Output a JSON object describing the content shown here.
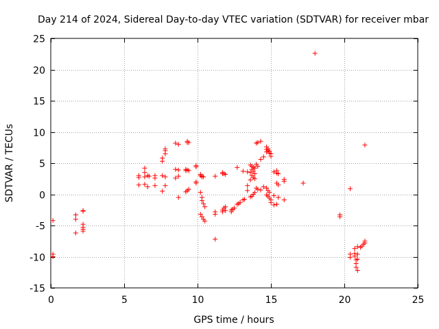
{
  "chart_data": {
    "type": "scatter",
    "title": "Day 214 of 2024, Sidereal Day-to-day VTEC variation (SDTVAR) for receiver mbar",
    "xlabel": "GPS time / hours",
    "ylabel": "SDTVAR / TECUs",
    "xlim": [
      0,
      25
    ],
    "ylim": [
      -15,
      25
    ],
    "xticks": [
      0,
      5,
      10,
      15,
      20,
      25
    ],
    "yticks": [
      -15,
      -10,
      -5,
      0,
      5,
      10,
      15,
      20,
      25
    ],
    "xtick_labels": [
      "0",
      "5",
      "10",
      "15",
      "20",
      "25"
    ],
    "ytick_labels": [
      "-15",
      "-10",
      "-5",
      "0",
      "5",
      "10",
      "15",
      "20",
      "25"
    ],
    "grid": true,
    "marker": "+",
    "color": "#ff0000",
    "series": [
      {
        "name": "mbar",
        "points": [
          [
            0.15,
            -4.2
          ],
          [
            0.15,
            -9.6
          ],
          [
            0.15,
            -10.0
          ],
          [
            1.7,
            -3.3
          ],
          [
            1.7,
            -4.0
          ],
          [
            1.7,
            -6.2
          ],
          [
            2.2,
            -2.6
          ],
          [
            2.2,
            -2.7
          ],
          [
            2.2,
            -4.8
          ],
          [
            2.2,
            -5.3
          ],
          [
            2.2,
            -5.6
          ],
          [
            2.2,
            -5.9
          ],
          [
            6.0,
            3.0
          ],
          [
            6.0,
            2.7
          ],
          [
            6.0,
            1.5
          ],
          [
            6.4,
            4.2
          ],
          [
            6.4,
            3.5
          ],
          [
            6.4,
            2.8
          ],
          [
            6.4,
            1.6
          ],
          [
            6.6,
            3.0
          ],
          [
            6.6,
            1.2
          ],
          [
            6.7,
            2.9
          ],
          [
            7.1,
            3.0
          ],
          [
            7.1,
            2.6
          ],
          [
            7.1,
            1.4
          ],
          [
            7.6,
            5.3
          ],
          [
            7.6,
            5.8
          ],
          [
            7.6,
            3.0
          ],
          [
            7.6,
            0.5
          ],
          [
            7.8,
            6.5
          ],
          [
            7.8,
            7.0
          ],
          [
            7.8,
            7.3
          ],
          [
            7.8,
            2.8
          ],
          [
            7.8,
            1.4
          ],
          [
            8.5,
            8.2
          ],
          [
            8.5,
            4.0
          ],
          [
            8.5,
            2.6
          ],
          [
            8.7,
            8.0
          ],
          [
            8.7,
            3.9
          ],
          [
            8.7,
            2.9
          ],
          [
            8.7,
            -0.5
          ],
          [
            9.2,
            4.0
          ],
          [
            9.2,
            3.8
          ],
          [
            9.2,
            0.4
          ],
          [
            9.3,
            8.3
          ],
          [
            9.3,
            8.5
          ],
          [
            9.3,
            3.9
          ],
          [
            9.3,
            0.6
          ],
          [
            9.4,
            8.3
          ],
          [
            9.4,
            3.8
          ],
          [
            9.4,
            0.8
          ],
          [
            9.9,
            4.6
          ],
          [
            9.9,
            4.4
          ],
          [
            9.9,
            2.0
          ],
          [
            9.9,
            1.8
          ],
          [
            10.2,
            3.2
          ],
          [
            10.2,
            3.0
          ],
          [
            10.2,
            0.3
          ],
          [
            10.2,
            -3.2
          ],
          [
            10.3,
            2.9
          ],
          [
            10.3,
            2.8
          ],
          [
            10.3,
            -0.5
          ],
          [
            10.3,
            -1.0
          ],
          [
            10.3,
            -3.6
          ],
          [
            10.4,
            2.8
          ],
          [
            10.4,
            -1.5
          ],
          [
            10.4,
            -4.0
          ],
          [
            10.5,
            -2.0
          ],
          [
            10.5,
            -4.3
          ],
          [
            11.2,
            2.9
          ],
          [
            11.2,
            -3.2
          ],
          [
            11.2,
            -2.8
          ],
          [
            11.2,
            -7.2
          ],
          [
            11.7,
            3.5
          ],
          [
            11.7,
            3.3
          ],
          [
            11.7,
            -2.5
          ],
          [
            11.7,
            -2.8
          ],
          [
            11.8,
            3.3
          ],
          [
            11.8,
            -2.2
          ],
          [
            11.9,
            3.2
          ],
          [
            11.9,
            -2.0
          ],
          [
            11.9,
            -2.6
          ],
          [
            12.3,
            -2.5
          ],
          [
            12.3,
            -2.8
          ],
          [
            12.4,
            -2.4
          ],
          [
            12.5,
            -2.2
          ],
          [
            12.7,
            4.3
          ],
          [
            12.7,
            -1.6
          ],
          [
            12.8,
            -1.5
          ],
          [
            12.9,
            -1.3
          ],
          [
            13.1,
            3.7
          ],
          [
            13.1,
            -0.9
          ],
          [
            13.2,
            -0.8
          ],
          [
            13.4,
            3.6
          ],
          [
            13.4,
            1.4
          ],
          [
            13.4,
            0.6
          ],
          [
            13.6,
            4.7
          ],
          [
            13.6,
            3.5
          ],
          [
            13.6,
            2.3
          ],
          [
            13.6,
            -0.4
          ],
          [
            13.7,
            4.5
          ],
          [
            13.7,
            4.0
          ],
          [
            13.7,
            3.0
          ],
          [
            13.7,
            -0.3
          ],
          [
            13.8,
            4.3
          ],
          [
            13.8,
            3.7
          ],
          [
            13.8,
            2.7
          ],
          [
            13.8,
            0.0
          ],
          [
            13.9,
            4.2
          ],
          [
            13.9,
            3.3
          ],
          [
            13.9,
            2.5
          ],
          [
            13.9,
            0.3
          ],
          [
            14.0,
            8.2
          ],
          [
            14.0,
            4.8
          ],
          [
            14.0,
            1.0
          ],
          [
            14.1,
            8.3
          ],
          [
            14.1,
            4.5
          ],
          [
            14.1,
            0.8
          ],
          [
            14.3,
            8.5
          ],
          [
            14.3,
            5.6
          ],
          [
            14.3,
            0.7
          ],
          [
            14.5,
            6.0
          ],
          [
            14.5,
            1.2
          ],
          [
            14.7,
            7.6
          ],
          [
            14.7,
            7.2
          ],
          [
            14.7,
            6.8
          ],
          [
            14.7,
            1.0
          ],
          [
            14.7,
            -0.1
          ],
          [
            14.8,
            7.3
          ],
          [
            14.8,
            7.0
          ],
          [
            14.8,
            0.6
          ],
          [
            14.8,
            -0.3
          ],
          [
            14.9,
            6.9
          ],
          [
            14.9,
            6.6
          ],
          [
            14.9,
            0.3
          ],
          [
            14.9,
            -0.6
          ],
          [
            15.0,
            6.5
          ],
          [
            15.0,
            6.1
          ],
          [
            15.0,
            -0.9
          ],
          [
            15.0,
            -1.3
          ],
          [
            15.2,
            3.6
          ],
          [
            15.2,
            -0.2
          ],
          [
            15.2,
            -1.7
          ],
          [
            15.4,
            3.8
          ],
          [
            15.4,
            3.4
          ],
          [
            15.4,
            1.8
          ],
          [
            15.4,
            -1.6
          ],
          [
            15.5,
            3.3
          ],
          [
            15.5,
            1.5
          ],
          [
            15.5,
            -0.5
          ],
          [
            15.9,
            2.4
          ],
          [
            15.9,
            2.1
          ],
          [
            15.9,
            -0.9
          ],
          [
            17.2,
            1.8
          ],
          [
            18.0,
            22.6
          ],
          [
            19.7,
            -3.3
          ],
          [
            19.7,
            -3.6
          ],
          [
            20.4,
            0.9
          ],
          [
            20.4,
            -9.6
          ],
          [
            20.4,
            -10.1
          ],
          [
            20.7,
            -8.7
          ],
          [
            20.7,
            -9.5
          ],
          [
            20.7,
            -9.9
          ],
          [
            20.8,
            -10.5
          ],
          [
            20.8,
            -11.1
          ],
          [
            20.8,
            -11.7
          ],
          [
            20.9,
            -8.4
          ],
          [
            20.9,
            -9.6
          ],
          [
            20.9,
            -10.4
          ],
          [
            20.9,
            -12.2
          ],
          [
            21.1,
            -8.5
          ],
          [
            21.2,
            -8.3
          ],
          [
            21.3,
            -8.0
          ],
          [
            21.4,
            -7.8
          ],
          [
            21.4,
            -7.5
          ],
          [
            21.4,
            7.9
          ]
        ]
      }
    ]
  }
}
